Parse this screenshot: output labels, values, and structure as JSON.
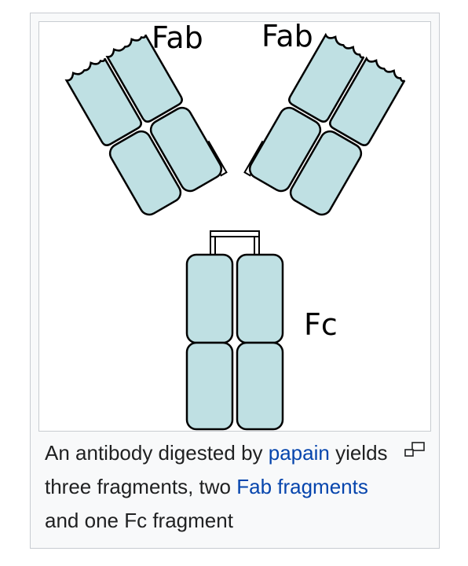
{
  "figure": {
    "labels": {
      "fab_left": "Fab",
      "fab_right": "Fab",
      "fc": "Fc"
    },
    "colors": {
      "domain_fill": "#bfe0e3",
      "outline": "#000000",
      "link": "#0645ad"
    },
    "magnify_icon": "magnify-clip-icon"
  },
  "caption": {
    "part1": "An antibody digested by ",
    "link1": "papain",
    "part2": " yields three fragments, two ",
    "link2": "Fab fragments",
    "part3": " and one Fc fragment"
  }
}
